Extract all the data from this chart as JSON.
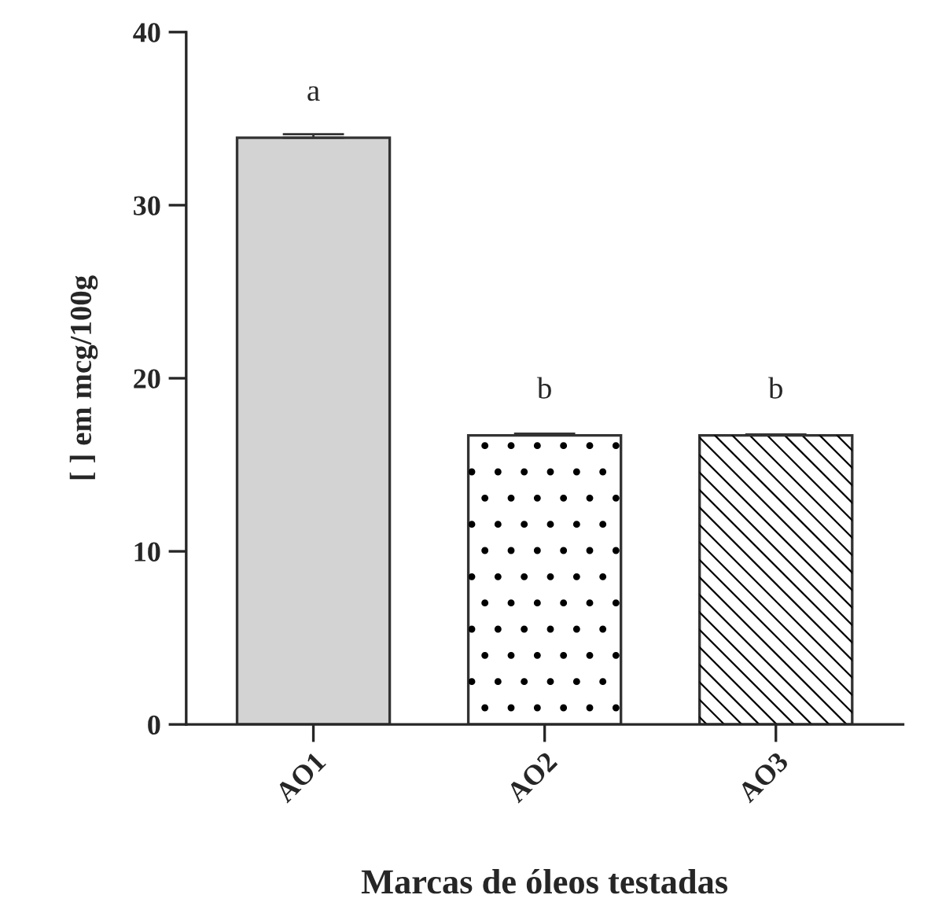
{
  "chart_data": {
    "type": "bar",
    "xlabel": "Marcas de óleos testadas",
    "ylabel": "[ ] em mcg/100g",
    "categories": [
      "AO1",
      "AO2",
      "AO3"
    ],
    "values": [
      33.9,
      16.7,
      16.7
    ],
    "errors": [
      0.2,
      0.1,
      0.05
    ],
    "colors": [
      "#d3d3d3",
      "#ffffff",
      "#ffffff"
    ],
    "ylim": [
      0,
      40
    ],
    "yticks": [
      0,
      10,
      20,
      30,
      40
    ],
    "annotations": [
      {
        "text": "a",
        "x": "AO1",
        "y": 33.9
      },
      {
        "text": "b",
        "x": "AO2",
        "y": 16.7
      },
      {
        "text": "b",
        "x": "AO3",
        "y": 16.7
      }
    ],
    "grid": false,
    "legend": false
  }
}
